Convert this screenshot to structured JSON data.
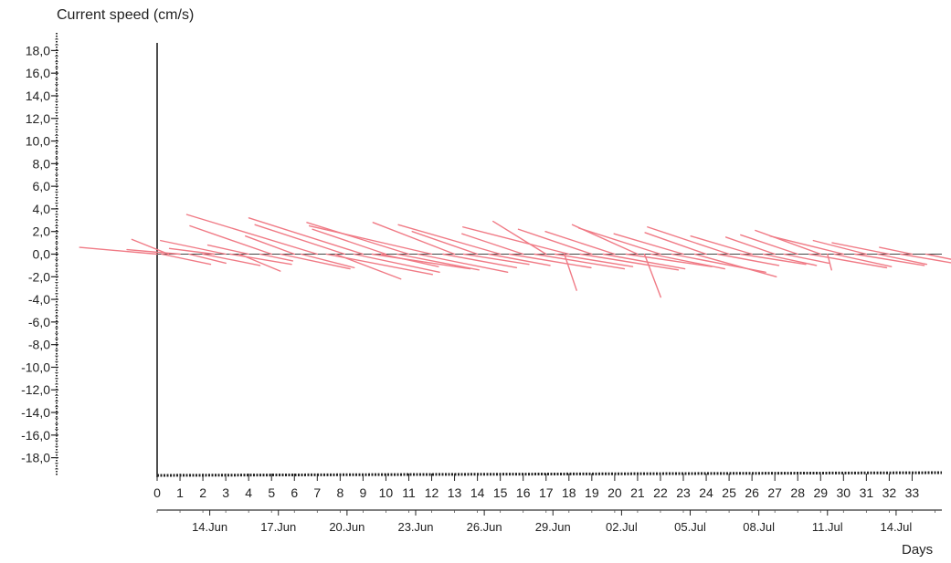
{
  "chart_data": {
    "type": "stick vector time series",
    "ylabel": "Current speed (cm/s)",
    "xlabel": "Days",
    "ylim": [
      -19,
      19
    ],
    "y_ticks": [
      "18,0",
      "16,0",
      "14,0",
      "12,0",
      "10,0",
      "8,0",
      "6,0",
      "4,0",
      "2,0",
      "0,0",
      "-2,0",
      "-4,0",
      "-6,0",
      "-8,0",
      "-10,0",
      "-12,0",
      "-14,0",
      "-16,0",
      "-18,0"
    ],
    "y_tick_values": [
      18,
      16,
      14,
      12,
      10,
      8,
      6,
      4,
      2,
      0,
      -2,
      -4,
      -6,
      -8,
      -10,
      -12,
      -14,
      -16,
      -18
    ],
    "xlim": [
      0,
      34.3
    ],
    "day_ticks": [
      "0",
      "1",
      "2",
      "3",
      "4",
      "5",
      "6",
      "7",
      "8",
      "9",
      "10",
      "11",
      "12",
      "13",
      "14",
      "15",
      "16",
      "17",
      "18",
      "19",
      "20",
      "21",
      "22",
      "23",
      "24",
      "25",
      "26",
      "27",
      "28",
      "29",
      "30",
      "31",
      "32",
      "33"
    ],
    "date_ticks": [
      {
        "day": 2.3,
        "label": "14.Jun"
      },
      {
        "day": 5.3,
        "label": "17.Jun"
      },
      {
        "day": 8.3,
        "label": "20.Jun"
      },
      {
        "day": 11.3,
        "label": "23.Jun"
      },
      {
        "day": 14.3,
        "label": "26.Jun"
      },
      {
        "day": 17.3,
        "label": "29.Jun"
      },
      {
        "day": 20.3,
        "label": "02.Jul"
      },
      {
        "day": 23.3,
        "label": "05.Jul"
      },
      {
        "day": 26.3,
        "label": "08.Jul"
      },
      {
        "day": 29.3,
        "label": "11.Jul"
      },
      {
        "day": 32.3,
        "label": "14.Jul"
      }
    ],
    "vector_color": "#f07a85",
    "vectors": [
      {
        "day": 0.0,
        "u": -1.9,
        "v": 0.6
      },
      {
        "day": 0.2,
        "u": 1.2,
        "v": -0.9
      },
      {
        "day": 0.5,
        "u": -0.9,
        "v": 1.3
      },
      {
        "day": 1.0,
        "u": -1.3,
        "v": 0.4
      },
      {
        "day": 1.4,
        "u": 0.9,
        "v": -0.8
      },
      {
        "day": 2.0,
        "u": 1.4,
        "v": -1.0
      },
      {
        "day": 2.5,
        "u": -1.1,
        "v": 0.5
      },
      {
        "day": 3.0,
        "u": -1.6,
        "v": 1.2
      },
      {
        "day": 3.2,
        "u": 1.5,
        "v": -0.9
      },
      {
        "day": 3.6,
        "u": 1.0,
        "v": -1.5
      },
      {
        "day": 4.0,
        "u": -1.0,
        "v": 0.8
      },
      {
        "day": 4.5,
        "u": 0.8,
        "v": -0.6
      },
      {
        "day": 5.0,
        "u": -2.0,
        "v": 2.5
      },
      {
        "day": 5.4,
        "u": 1.7,
        "v": -1.3
      },
      {
        "day": 6.0,
        "u": -1.2,
        "v": 1.6
      },
      {
        "day": 6.3,
        "u": 1.3,
        "v": -1.2
      },
      {
        "day": 7.0,
        "u": -3.2,
        "v": 3.5
      },
      {
        "day": 7.4,
        "u": 2.6,
        "v": -1.8
      },
      {
        "day": 7.8,
        "u": 1.6,
        "v": -2.2
      },
      {
        "day": 8.2,
        "u": -2.2,
        "v": 2.6
      },
      {
        "day": 8.6,
        "u": 2.1,
        "v": -1.6
      },
      {
        "day": 9.0,
        "u": -2.8,
        "v": 3.2
      },
      {
        "day": 9.4,
        "u": 2.4,
        "v": -1.3
      },
      {
        "day": 9.8,
        "u": 1.4,
        "v": -1.1
      },
      {
        "day": 10.0,
        "u": -1.8,
        "v": 2.2
      },
      {
        "day": 10.5,
        "u": 2.0,
        "v": -1.4
      },
      {
        "day": 11.0,
        "u": -2.5,
        "v": 2.8
      },
      {
        "day": 11.4,
        "u": 2.2,
        "v": -1.6
      },
      {
        "day": 12.0,
        "u": -3.0,
        "v": 2.5
      },
      {
        "day": 12.5,
        "u": 1.8,
        "v": -1.2
      },
      {
        "day": 13.0,
        "u": -2.0,
        "v": 2.8
      },
      {
        "day": 13.4,
        "u": 1.6,
        "v": -0.9
      },
      {
        "day": 14.0,
        "u": -1.6,
        "v": 2.0
      },
      {
        "day": 14.5,
        "u": 1.5,
        "v": -1.0
      },
      {
        "day": 15.0,
        "u": -2.5,
        "v": 2.6
      },
      {
        "day": 15.4,
        "u": 2.0,
        "v": -1.2
      },
      {
        "day": 16.0,
        "u": -1.5,
        "v": 1.8
      },
      {
        "day": 16.5,
        "u": 2.2,
        "v": -1.3
      },
      {
        "day": 17.0,
        "u": -1.3,
        "v": 2.9
      },
      {
        "day": 17.4,
        "u": 1.9,
        "v": -1.1
      },
      {
        "day": 17.8,
        "u": 0.3,
        "v": -3.2
      },
      {
        "day": 18.0,
        "u": -2.6,
        "v": 2.4
      },
      {
        "day": 18.5,
        "u": 2.4,
        "v": -1.4
      },
      {
        "day": 19.0,
        "u": -1.8,
        "v": 2.2
      },
      {
        "day": 19.5,
        "u": 2.0,
        "v": -1.3
      },
      {
        "day": 20.0,
        "u": -1.7,
        "v": 2.0
      },
      {
        "day": 20.5,
        "u": 2.1,
        "v": -1.1
      },
      {
        "day": 21.0,
        "u": -1.6,
        "v": 2.6
      },
      {
        "day": 21.3,
        "u": 0.4,
        "v": -3.8
      },
      {
        "day": 21.6,
        "u": 1.8,
        "v": -1.3
      },
      {
        "day": 22.0,
        "u": -2.0,
        "v": 2.3
      },
      {
        "day": 22.5,
        "u": 2.3,
        "v": -1.6
      },
      {
        "day": 23.0,
        "u": -1.7,
        "v": 1.8
      },
      {
        "day": 23.5,
        "u": 2.0,
        "v": -2.0
      },
      {
        "day": 24.0,
        "u": -1.5,
        "v": 1.9
      },
      {
        "day": 24.5,
        "u": 1.5,
        "v": -1.0
      },
      {
        "day": 25.0,
        "u": -2.0,
        "v": 2.4
      },
      {
        "day": 25.5,
        "u": 1.6,
        "v": -0.9
      },
      {
        "day": 26.0,
        "u": -1.5,
        "v": 1.6
      },
      {
        "day": 26.5,
        "u": 1.3,
        "v": -1.0
      },
      {
        "day": 27.0,
        "u": -1.2,
        "v": 1.5
      },
      {
        "day": 27.4,
        "u": 1.1,
        "v": -0.8
      },
      {
        "day": 28.0,
        "u": -1.4,
        "v": 1.7
      },
      {
        "day": 28.5,
        "u": 1.9,
        "v": -1.2
      },
      {
        "day": 29.0,
        "u": -1.6,
        "v": 2.1
      },
      {
        "day": 29.3,
        "u": 0.1,
        "v": -1.4
      },
      {
        "day": 29.6,
        "u": 1.4,
        "v": -1.1
      },
      {
        "day": 30.0,
        "u": -1.8,
        "v": 1.6
      },
      {
        "day": 30.5,
        "u": 1.7,
        "v": -1.0
      },
      {
        "day": 31.0,
        "u": -1.3,
        "v": 1.2
      },
      {
        "day": 31.5,
        "u": 1.2,
        "v": -0.9
      },
      {
        "day": 32.0,
        "u": -1.4,
        "v": 1.0
      },
      {
        "day": 32.5,
        "u": 1.3,
        "v": -0.8
      },
      {
        "day": 33.0,
        "u": -0.8,
        "v": 0.6
      },
      {
        "day": 33.6,
        "u": 1.9,
        "v": -1.4
      }
    ]
  }
}
